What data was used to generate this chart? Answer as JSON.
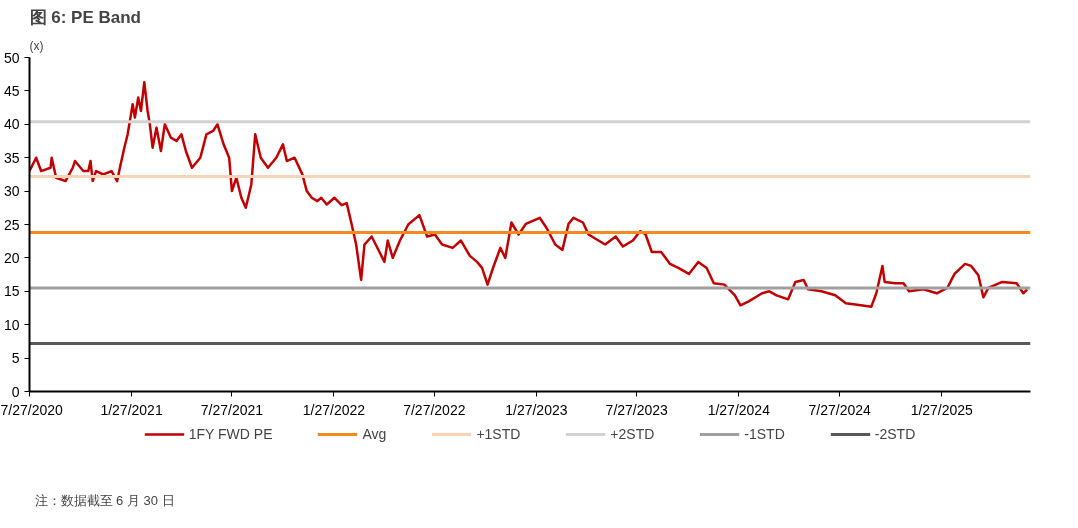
{
  "chart_data": {
    "type": "line",
    "title": "图 6: PE Band",
    "ylabel": "(x)",
    "x": [
      "2020-07-27",
      "2020-08-08",
      "2020-08-17",
      "2020-09-03",
      "2020-09-05",
      "2020-09-13",
      "2020-09-30",
      "2020-10-13",
      "2020-10-17",
      "2020-11-01",
      "2020-11-10",
      "2020-11-14",
      "2020-11-18",
      "2020-11-24",
      "2020-12-07",
      "2020-12-22",
      "2021-01-01",
      "2021-01-06",
      "2021-01-14",
      "2021-01-20",
      "2021-01-25",
      "2021-01-29",
      "2021-02-02",
      "2021-02-08",
      "2021-02-13",
      "2021-02-19",
      "2021-02-25",
      "2021-03-01",
      "2021-03-06",
      "2021-03-13",
      "2021-03-21",
      "2021-03-28",
      "2021-04-08",
      "2021-04-18",
      "2021-04-27",
      "2021-05-05",
      "2021-05-16",
      "2021-05-31",
      "2021-06-11",
      "2021-06-23",
      "2021-07-01",
      "2021-07-12",
      "2021-07-22",
      "2021-07-27",
      "2021-08-04",
      "2021-08-13",
      "2021-08-21",
      "2021-08-31",
      "2021-09-07",
      "2021-09-17",
      "2021-09-30",
      "2021-10-15",
      "2021-10-27",
      "2021-11-03",
      "2021-11-17",
      "2021-12-01",
      "2021-12-09",
      "2021-12-18",
      "2021-12-28",
      "2022-01-04",
      "2022-01-14",
      "2022-01-28",
      "2022-02-10",
      "2022-02-19",
      "2022-02-28",
      "2022-03-08",
      "2022-03-17",
      "2022-03-23",
      "2022-04-05",
      "2022-04-28",
      "2022-05-04",
      "2022-05-13",
      "2022-05-26",
      "2022-06-10",
      "2022-06-30",
      "2022-07-14",
      "2022-07-28",
      "2022-08-10",
      "2022-08-29",
      "2022-09-13",
      "2022-09-29",
      "2022-10-12",
      "2022-10-21",
      "2022-10-31",
      "2022-11-09",
      "2022-11-23",
      "2022-12-02",
      "2022-12-13",
      "2022-12-26",
      "2023-01-08",
      "2023-02-02",
      "2023-02-15",
      "2023-03-02",
      "2023-03-15",
      "2023-03-26",
      "2023-04-04",
      "2023-04-21",
      "2023-05-01",
      "2023-05-31",
      "2023-06-19",
      "2023-07-02",
      "2023-07-20",
      "2023-08-02",
      "2023-08-12",
      "2023-08-23",
      "2023-09-09",
      "2023-09-25",
      "2023-10-10",
      "2023-10-29",
      "2023-11-15",
      "2023-11-30",
      "2023-12-13",
      "2024-01-01",
      "2024-01-20",
      "2024-01-30",
      "2024-02-14",
      "2024-03-09",
      "2024-03-22",
      "2024-04-04",
      "2024-04-25",
      "2024-05-08",
      "2024-05-23",
      "2024-05-31",
      "2024-06-24",
      "2024-07-19",
      "2024-08-07",
      "2024-09-03",
      "2024-09-22",
      "2024-10-01",
      "2024-10-12",
      "2024-10-16",
      "2024-11-04",
      "2024-11-19",
      "2024-11-29",
      "2024-12-25",
      "2025-01-18",
      "2025-02-06",
      "2025-02-19",
      "2025-03-10",
      "2025-03-21",
      "2025-04-03",
      "2025-04-12",
      "2025-04-21",
      "2025-05-16",
      "2025-06-11",
      "2025-06-23",
      "2025-06-30"
    ],
    "series": [
      {
        "name": "1FY FWD PE",
        "color": "#c00000",
        "values": [
          33,
          35,
          33,
          33.5,
          35,
          32,
          31.5,
          33.5,
          34.5,
          33,
          33,
          34.5,
          31.5,
          33,
          32.5,
          33,
          31.5,
          33.5,
          36.5,
          38.5,
          41,
          43,
          41,
          44,
          42,
          46.3,
          42,
          40,
          36.5,
          39.5,
          36,
          40,
          38,
          37.5,
          38.5,
          36,
          33.5,
          35,
          38.5,
          39,
          40,
          37,
          35,
          30,
          32,
          29,
          27.5,
          31,
          38.5,
          35,
          33.5,
          35,
          37,
          34.5,
          35,
          32.5,
          30,
          29,
          28.5,
          29,
          28,
          29,
          27.9,
          28.2,
          25,
          22,
          16.7,
          22,
          23.2,
          19.4,
          22.6,
          20,
          22.6,
          25,
          26.4,
          23.2,
          23.5,
          22,
          21.5,
          22.6,
          20.3,
          19.4,
          18.5,
          16,
          18.3,
          21.5,
          20,
          25.3,
          23.5,
          25.1,
          26,
          24.4,
          22,
          21.2,
          25.1,
          26,
          25.3,
          23.5,
          22,
          23.2,
          21.7,
          22.6,
          24,
          23.5,
          20.9,
          20.9,
          19.1,
          18.5,
          17.6,
          19.4,
          18.5,
          16.2,
          16,
          14.4,
          12.9,
          13.5,
          14.7,
          15,
          14.4,
          13.8,
          16.4,
          16.7,
          15.3,
          15,
          14.4,
          13.2,
          12.9,
          12.7,
          14.7,
          18.8,
          16.4,
          16.2,
          16.2,
          15,
          15.3,
          14.7,
          15.5,
          17.6,
          19.1,
          18.8,
          17.4,
          14.1,
          15.5,
          16.4,
          16.2,
          14.7,
          15.3
        ]
      }
    ],
    "ref_lines": [
      {
        "axis": "y",
        "value": 23.8,
        "label": "Avg",
        "color": "#f58a1f"
      },
      {
        "axis": "y",
        "value": 32.2,
        "label": "+1STD",
        "color": "#f8d3b6"
      },
      {
        "axis": "y",
        "value": 40.4,
        "label": "+2STD",
        "color": "#d2d2d2"
      },
      {
        "axis": "y",
        "value": 15.5,
        "label": "-1STD",
        "color": "#a0a0a0"
      },
      {
        "axis": "y",
        "value": 7.2,
        "label": "-2STD",
        "color": "#595959"
      }
    ],
    "xlim": [
      "2020-07-27",
      "2025-07-06"
    ],
    "xticks": [
      {
        "value": "2020-07-27",
        "label": "7/27/2020"
      },
      {
        "value": "2021-01-27",
        "label": "1/27/2021"
      },
      {
        "value": "2021-07-27",
        "label": "7/27/2021"
      },
      {
        "value": "2022-01-27",
        "label": "1/27/2022"
      },
      {
        "value": "2022-07-27",
        "label": "7/27/2022"
      },
      {
        "value": "2023-01-27",
        "label": "1/27/2023"
      },
      {
        "value": "2023-07-27",
        "label": "7/27/2023"
      },
      {
        "value": "2024-01-27",
        "label": "1/27/2024"
      },
      {
        "value": "2024-07-27",
        "label": "7/27/2024"
      },
      {
        "value": "2025-01-27",
        "label": "1/27/2025"
      }
    ],
    "ylim": [
      0,
      50
    ],
    "yticks": [
      0,
      5,
      10,
      15,
      20,
      25,
      30,
      35,
      40,
      45,
      50
    ],
    "legend": "bottom",
    "grid": false,
    "annotations": [
      "注：数据截至 6 月 30 日"
    ]
  }
}
